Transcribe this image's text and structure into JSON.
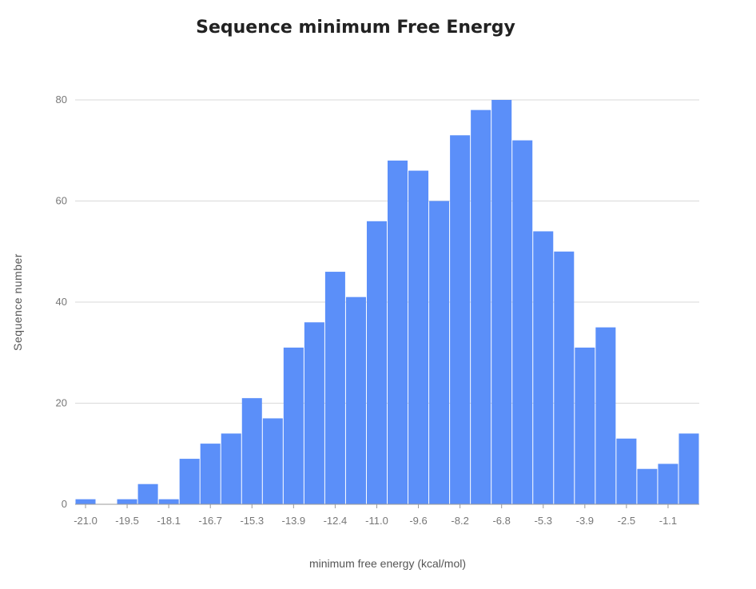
{
  "chart_data": {
    "type": "bar",
    "title": "Sequence minimum Free Energy",
    "xlabel": "minimum free energy (kcal/mol)",
    "ylabel": "Sequence number",
    "x_tick_labels": [
      "-21.0",
      "-19.5",
      "-18.1",
      "-16.7",
      "-15.3",
      "-13.9",
      "-12.4",
      "-11.0",
      "-9.6",
      "-8.2",
      "-6.8",
      "-5.3",
      "-3.9",
      "-2.5",
      "-1.1"
    ],
    "y_ticks": [
      0,
      20,
      40,
      60,
      80
    ],
    "ylim": [
      0,
      80
    ],
    "values": [
      1,
      0,
      1,
      4,
      1,
      9,
      12,
      14,
      21,
      17,
      31,
      36,
      46,
      41,
      56,
      68,
      66,
      60,
      73,
      78,
      80,
      72,
      54,
      50,
      31,
      35,
      13,
      7,
      8,
      14
    ],
    "bar_color": "#5b8ff9",
    "grid": true
  }
}
